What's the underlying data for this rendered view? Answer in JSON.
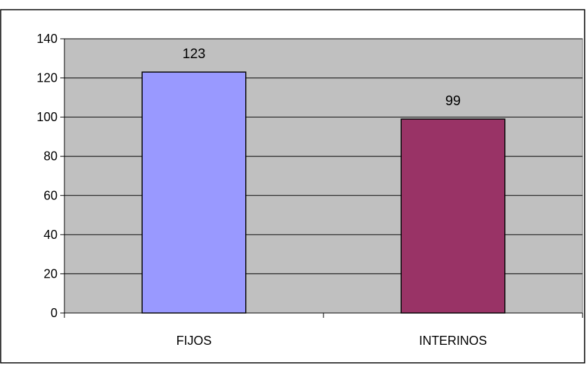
{
  "chart_data": {
    "type": "bar",
    "categories": [
      "FIJOS",
      "INTERINOS"
    ],
    "values": [
      123,
      99
    ],
    "data_labels": [
      "123",
      "99"
    ],
    "bar_colors": [
      "#9999ff",
      "#993366"
    ],
    "plot_background": "#c0c0c0",
    "ylim": [
      0,
      140
    ],
    "yticks": [
      0,
      20,
      40,
      60,
      80,
      100,
      120,
      140
    ],
    "ytick_labels": [
      "0",
      "20",
      "40",
      "60",
      "80",
      "100",
      "120",
      "140"
    ],
    "grid": true,
    "legend": "none",
    "title": "",
    "xlabel": "",
    "ylabel": ""
  }
}
